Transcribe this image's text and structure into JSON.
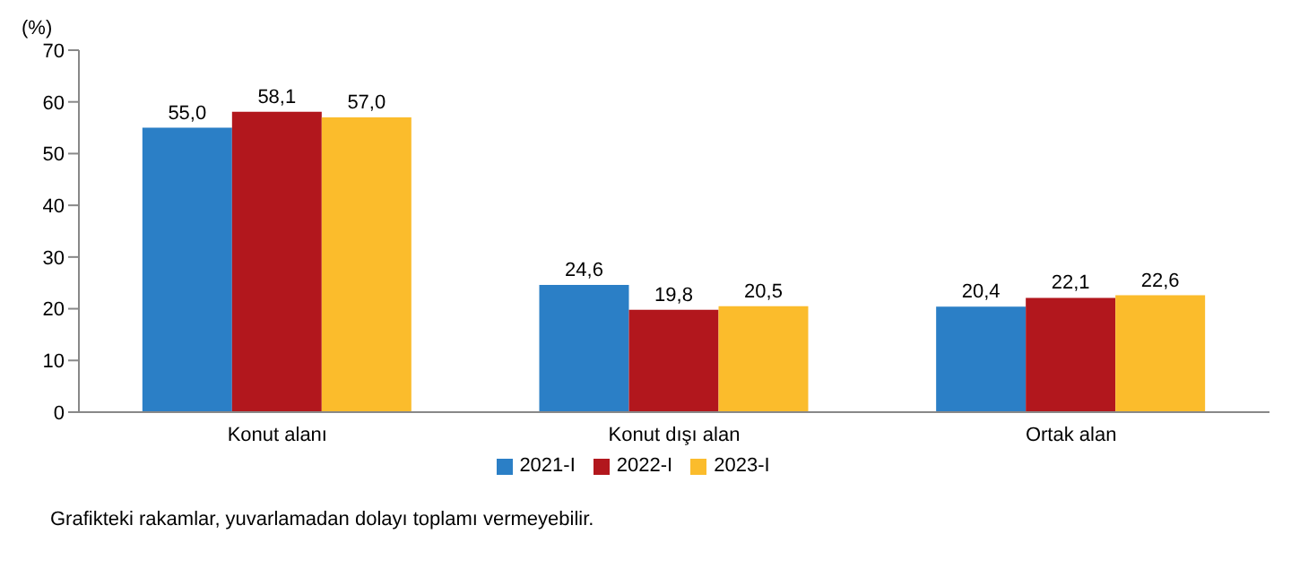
{
  "chart_data": {
    "type": "bar",
    "ylabel": "(%)",
    "categories": [
      "Konut alanı",
      "Konut dışı alan",
      "Ortak alan"
    ],
    "series": [
      {
        "name": "2021-I",
        "color": "#2b7fc6",
        "values": [
          55.0,
          24.6,
          20.4
        ],
        "value_labels": [
          "55,0",
          "24,6",
          "20,4"
        ]
      },
      {
        "name": "2022-I",
        "color": "#b2171d",
        "values": [
          58.1,
          19.8,
          22.1
        ],
        "value_labels": [
          "58,1",
          "19,8",
          "22,1"
        ]
      },
      {
        "name": "2023-I",
        "color": "#fbbc2c",
        "values": [
          57.0,
          20.5,
          22.6
        ],
        "value_labels": [
          "57,0",
          "20,5",
          "22,6"
        ]
      }
    ],
    "ylim": [
      0,
      70
    ],
    "yticks": [
      0,
      10,
      20,
      30,
      40,
      50,
      60,
      70
    ],
    "grid": false,
    "legend": "bottom",
    "annotations": [
      "Grafikteki rakamlar, yuvarlamadan dolayı toplamı vermeyebilir."
    ]
  }
}
